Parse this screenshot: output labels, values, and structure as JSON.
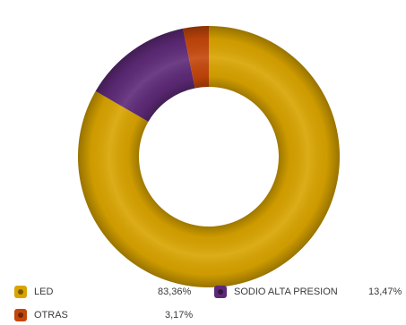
{
  "chart_data": {
    "type": "pie",
    "style": "donut",
    "legend_position": "bottom",
    "categories": [
      "LED",
      "SODIO ALTA PRESION",
      "OTRAS"
    ],
    "values": [
      83.36,
      13.47,
      3.17
    ],
    "value_labels": [
      "83,36%",
      "13,47%",
      "3,17%"
    ],
    "colors": [
      "#d9a400",
      "#5e2a78",
      "#c4460a"
    ]
  }
}
